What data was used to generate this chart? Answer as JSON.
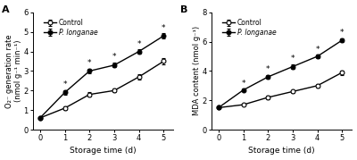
{
  "panel_A": {
    "label": "A",
    "x": [
      0,
      1,
      2,
      3,
      4,
      5
    ],
    "control_y": [
      0.6,
      1.1,
      1.8,
      2.0,
      2.7,
      3.5
    ],
    "control_err": [
      0.05,
      0.08,
      0.1,
      0.1,
      0.12,
      0.15
    ],
    "p_longanae_y": [
      0.6,
      1.9,
      3.0,
      3.3,
      4.0,
      4.8
    ],
    "p_longanae_err": [
      0.05,
      0.1,
      0.1,
      0.12,
      0.1,
      0.12
    ],
    "star_positions_x": [
      1,
      2,
      3,
      4,
      5
    ],
    "star_y_p": [
      2.1,
      3.18,
      3.52,
      4.18,
      5.0
    ],
    "ylabel": "O₂⁻ generation rate\n(nmol g⁻¹ min⁻¹)",
    "xlabel": "Storage time (d)",
    "ylim": [
      0,
      6
    ],
    "yticks": [
      0,
      1,
      2,
      3,
      4,
      5,
      6
    ]
  },
  "panel_B": {
    "label": "B",
    "x": [
      0,
      1,
      2,
      3,
      4,
      5
    ],
    "control_y": [
      1.5,
      1.7,
      2.2,
      2.6,
      3.0,
      3.9
    ],
    "control_err": [
      0.05,
      0.08,
      0.1,
      0.1,
      0.12,
      0.15
    ],
    "p_longanae_y": [
      1.5,
      2.7,
      3.6,
      4.3,
      5.0,
      6.1
    ],
    "p_longanae_err": [
      0.05,
      0.1,
      0.12,
      0.15,
      0.12,
      0.15
    ],
    "star_positions_x": [
      1,
      2,
      3,
      4,
      5
    ],
    "star_y_p": [
      2.88,
      3.82,
      4.58,
      5.18,
      6.32
    ],
    "ylabel": "MDA content (nmol g⁻¹)",
    "xlabel": "Storage time (d)",
    "ylim": [
      0,
      8
    ],
    "yticks": [
      0,
      2,
      4,
      6,
      8
    ]
  },
  "legend_control": "Control",
  "legend_p_longanae": "P. longanae",
  "color_control": "#000000",
  "color_p_longanae": "#000000",
  "background": "#ffffff"
}
